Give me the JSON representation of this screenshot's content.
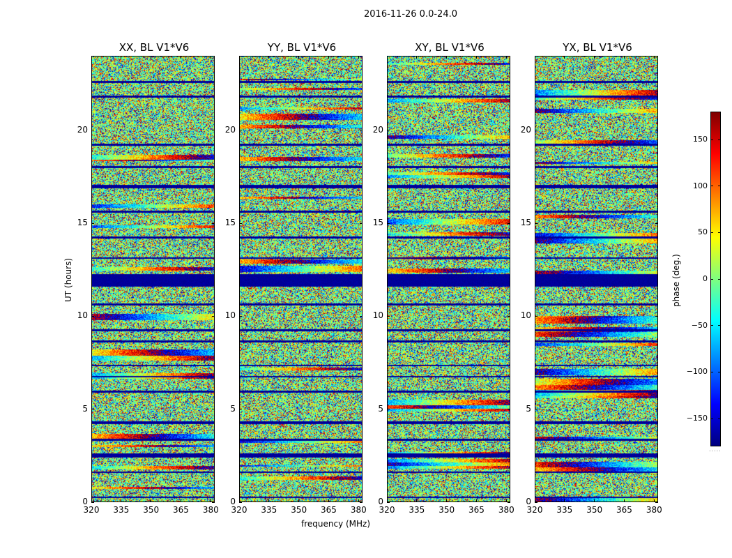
{
  "chart_data": {
    "type": "heatmap",
    "suptitle": "2016-11-26 0.0-24.0",
    "panels": [
      {
        "title": "XX, BL V1*V6",
        "seed": 11
      },
      {
        "title": "YY, BL V1*V6",
        "seed": 23
      },
      {
        "title": "XY, BL V1*V6",
        "seed": 37
      },
      {
        "title": "YX, BL V1*V6",
        "seed": 51
      }
    ],
    "xlabel": "frequency (MHz)",
    "ylabel": "UT (hours)",
    "xlim": [
      320,
      382
    ],
    "ylim": [
      0,
      24
    ],
    "xticks": [
      320,
      335,
      350,
      365,
      380
    ],
    "xtick_labels": [
      "320",
      "335",
      "350",
      "365",
      "380"
    ],
    "yticks": [
      0,
      5,
      10,
      15,
      20
    ],
    "ytick_labels": [
      "0",
      "5",
      "10",
      "15",
      "20"
    ],
    "colorbar": {
      "label": "phase (deg.)",
      "range": [
        -180,
        180
      ],
      "ticks": [
        -150,
        -100,
        -50,
        0,
        50,
        100,
        150
      ],
      "tick_labels": [
        "−150",
        "−100",
        "−50",
        "0",
        "50",
        "100",
        "150"
      ],
      "colormap": "jet"
    },
    "flagged_bands_hours": [
      [
        11.6,
        12.3
      ],
      [
        16.9,
        17.1
      ],
      [
        9.2,
        9.3
      ],
      [
        4.2,
        4.35
      ],
      [
        6.7,
        6.8
      ],
      [
        2.4,
        2.6
      ],
      [
        0.2,
        0.3
      ],
      [
        1.55,
        1.65
      ],
      [
        3.3,
        3.4
      ],
      [
        5.9,
        6.0
      ],
      [
        7.3,
        7.4
      ],
      [
        8.6,
        8.7
      ],
      [
        10.6,
        10.7
      ],
      [
        13.1,
        13.2
      ],
      [
        14.2,
        14.3
      ],
      [
        15.6,
        15.7
      ],
      [
        18.0,
        18.1
      ],
      [
        19.2,
        19.3
      ],
      [
        21.8,
        21.9
      ],
      [
        22.6,
        22.7
      ]
    ]
  }
}
